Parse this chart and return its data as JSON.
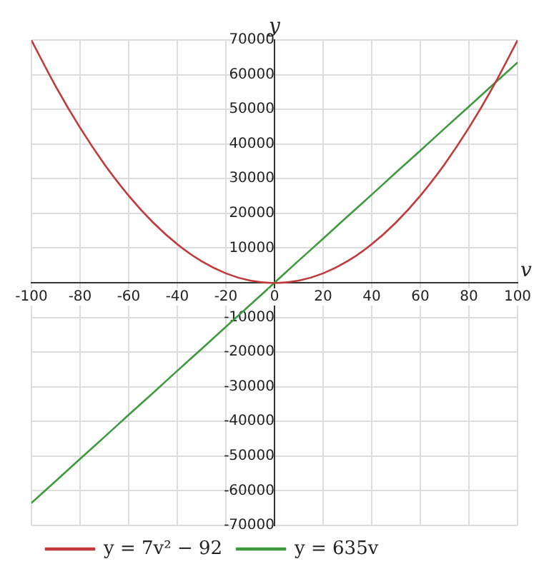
{
  "chart_data": {
    "type": "line",
    "xlabel": "v",
    "ylabel": "y",
    "x": [
      -100,
      -90,
      -80,
      -70,
      -60,
      -50,
      -40,
      -30,
      -20,
      -10,
      0,
      10,
      20,
      30,
      40,
      50,
      60,
      70,
      80,
      90,
      100
    ],
    "series": [
      {
        "name": "y = 7v² − 92",
        "color": "#c0393b",
        "values": [
          69900,
          56600,
          44700,
          34200,
          25100,
          17400,
          11100,
          6200,
          2700,
          600,
          -100,
          600,
          2700,
          6200,
          11100,
          17400,
          25100,
          34200,
          44700,
          56600,
          69900
        ]
      },
      {
        "name": "y = 635v",
        "color": "#3f9a3f",
        "values": [
          -63500,
          -57200,
          -50800,
          -44500,
          -38100,
          -31800,
          -25400,
          -19100,
          -12700,
          -6400,
          0,
          6400,
          12700,
          19100,
          25400,
          31800,
          38100,
          44500,
          50800,
          57200,
          63500
        ]
      }
    ],
    "xlim": [
      -100,
      100
    ],
    "xticks": [
      -100,
      -80,
      -60,
      -40,
      -20,
      0,
      20,
      40,
      60,
      80,
      100
    ],
    "ylim": [
      -70000,
      70000
    ],
    "yticks": [
      -70000,
      -60000,
      -50000,
      -40000,
      -30000,
      -20000,
      -10000,
      {
        "value": 0,
        "label": null
      },
      10000,
      20000,
      30000,
      40000,
      50000,
      60000,
      70000
    ],
    "grid": true,
    "legend": "bottom left",
    "marker": "none",
    "line_style": "solid"
  }
}
